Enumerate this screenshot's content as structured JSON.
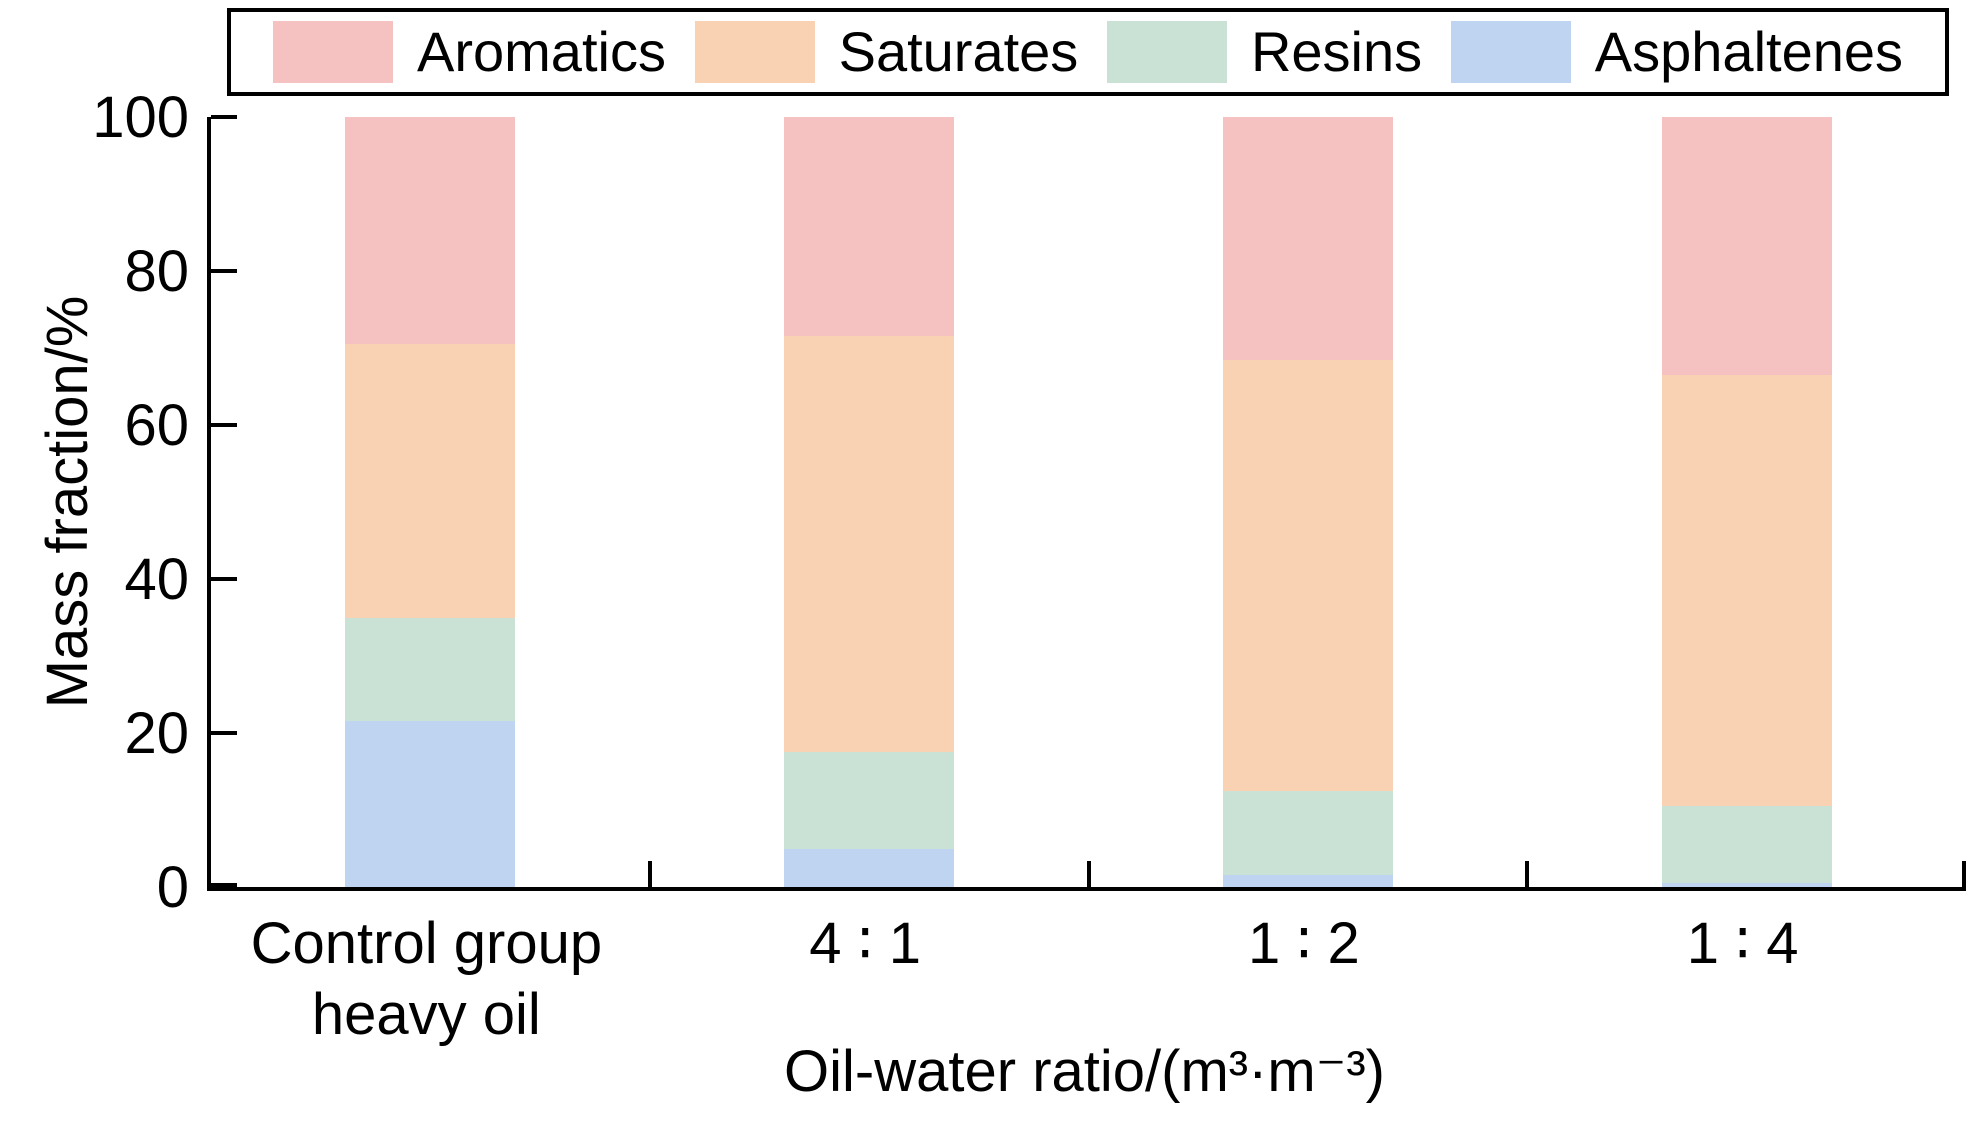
{
  "chart_data": {
    "type": "bar",
    "stacked": true,
    "orientation": "vertical",
    "title": "",
    "xlabel": "Oil-water ratio/(m³·m⁻³)",
    "ylabel": "Mass fraction/%",
    "ylim": [
      0,
      100
    ],
    "yticks": [
      0,
      20,
      40,
      60,
      80,
      100
    ],
    "grid": false,
    "legend_position": "top",
    "legend_order": [
      "Aromatics",
      "Saturates",
      "Resins",
      "Asphaltenes"
    ],
    "categories": [
      [
        "Control group",
        "heavy oil"
      ],
      [
        "4 ∶ 1"
      ],
      [
        "1 ∶ 2"
      ],
      [
        "1 ∶ 4"
      ]
    ],
    "series": [
      {
        "name": "Asphaltenes",
        "color": "#BED4F0",
        "values": [
          21.5,
          5.0,
          1.5,
          0.5
        ]
      },
      {
        "name": "Resins",
        "color": "#C9E2D5",
        "values": [
          13.5,
          12.5,
          11.0,
          10.0
        ]
      },
      {
        "name": "Saturates",
        "color": "#F8D2B3",
        "values": [
          35.5,
          54.0,
          56.0,
          56.0
        ]
      },
      {
        "name": "Aromatics",
        "color": "#F5C2C1",
        "values": [
          29.5,
          28.5,
          31.5,
          33.5
        ]
      }
    ],
    "axis_color": "#000000"
  }
}
